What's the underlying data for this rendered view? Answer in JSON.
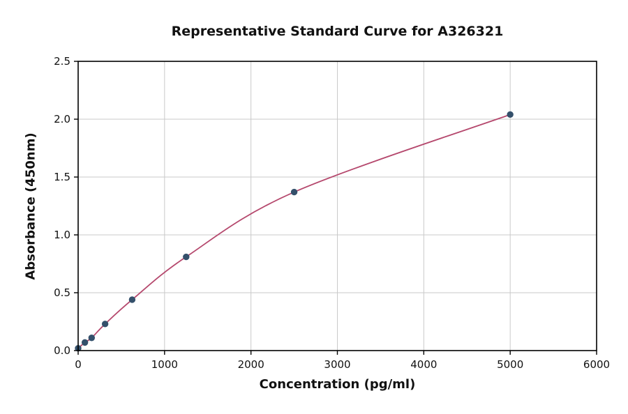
{
  "chart_data": {
    "type": "scatter",
    "title": "Representative Standard Curve for A326321",
    "xlabel": "Concentration (pg/ml)",
    "ylabel": "Absorbance (450nm)",
    "xlim": [
      0,
      6000
    ],
    "ylim": [
      0,
      2.5
    ],
    "x_ticks": [
      0,
      1000,
      2000,
      3000,
      4000,
      5000,
      6000
    ],
    "x_tick_labels": [
      "0",
      "1000",
      "2000",
      "3000",
      "4000",
      "5000",
      "6000"
    ],
    "y_ticks": [
      0.0,
      0.5,
      1.0,
      1.5,
      2.0,
      2.5
    ],
    "y_tick_labels": [
      "0.0",
      "0.5",
      "1.0",
      "1.5",
      "2.0",
      "2.5"
    ],
    "grid": true,
    "legend_position": "none",
    "points": {
      "x": [
        0,
        78,
        156,
        312,
        625,
        1250,
        2500,
        5000
      ],
      "y": [
        0.02,
        0.07,
        0.11,
        0.23,
        0.44,
        0.81,
        1.37,
        2.04
      ]
    },
    "colors": {
      "curve": "#b5486d",
      "point": "#34506b",
      "grid": "#c9c9c9",
      "spine": "#000000"
    }
  }
}
